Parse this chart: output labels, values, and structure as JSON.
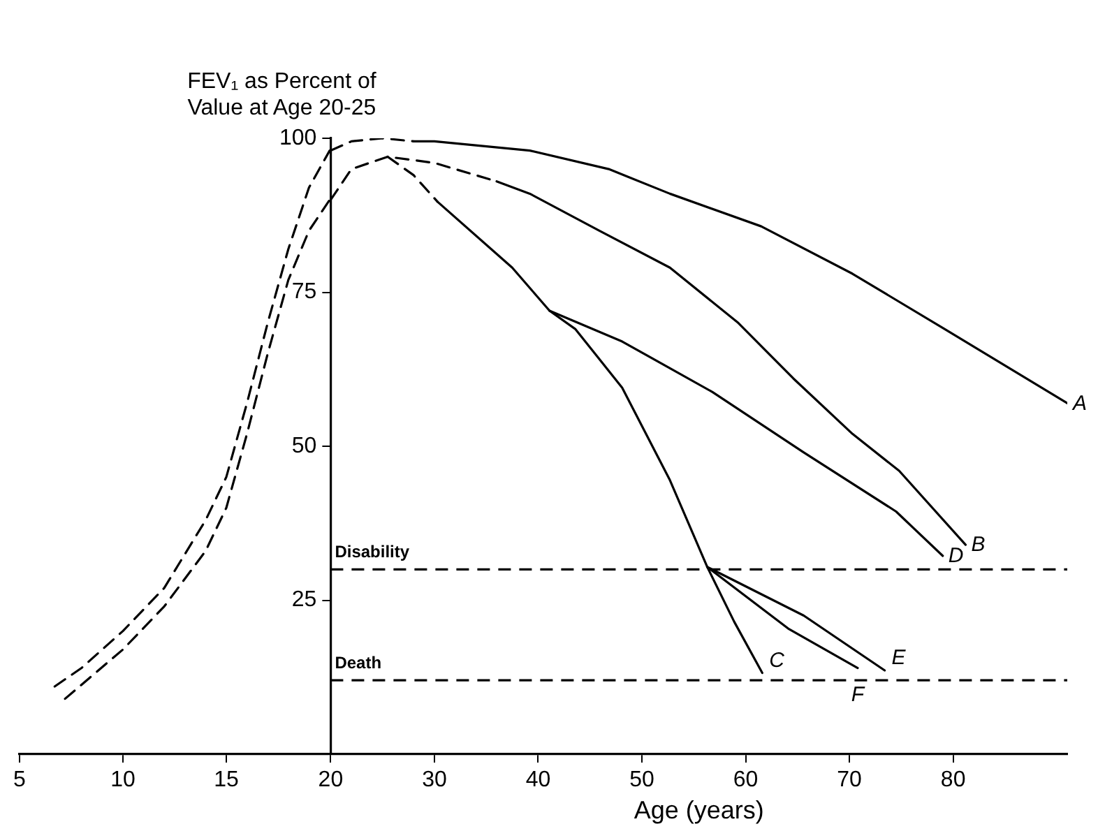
{
  "chart_data": [
    {
      "type": "line",
      "xlim": [
        5,
        20
      ],
      "xticks": [
        5,
        10,
        15
      ],
      "ylim": [
        0,
        100
      ],
      "tick_labels": "x",
      "grid": false,
      "legend": false,
      "marker": "none",
      "series": [
        {
          "color": "#000000",
          "line_style": "dashed",
          "x": [
            6.7,
            8,
            10,
            12,
            14,
            15,
            16,
            17,
            18,
            19,
            20
          ],
          "values": [
            11,
            14,
            20,
            27,
            38,
            45,
            57,
            70,
            82,
            92,
            98
          ]
        },
        {
          "color": "#000000",
          "line_style": "dashed",
          "x": [
            7.2,
            10,
            12,
            14,
            15,
            16,
            17,
            18,
            19,
            20
          ],
          "values": [
            9,
            17,
            24,
            33,
            40,
            52,
            65,
            77,
            85,
            90
          ]
        }
      ]
    },
    {
      "type": "line",
      "ylabel": "FEV₁ as Percent of Value at Age 20-25",
      "xlabel": "Age (years)",
      "xlim": [
        20,
        91
      ],
      "xticks": [
        20,
        30,
        40,
        50,
        60,
        70,
        80
      ],
      "ylim": [
        0,
        100
      ],
      "yticks": [
        25,
        50,
        75,
        100
      ],
      "grid": false,
      "legend": false,
      "marker": "none",
      "ref_lines": [
        {
          "axis": "y",
          "value": 30,
          "label": "Disability",
          "color": "#000000",
          "line_style": "dashed"
        },
        {
          "axis": "y",
          "value": 12,
          "label": "Death",
          "color": "#000000",
          "line_style": "dashed"
        }
      ],
      "series": [
        {
          "color": "#000000",
          "line_style": "dashed",
          "x": [
            20,
            22,
            25,
            28
          ],
          "values": [
            98,
            99.5,
            100,
            99.5
          ]
        },
        {
          "color": "#000000",
          "line_style": "dashed",
          "x": [
            20,
            22,
            25.5,
            30,
            36
          ],
          "values": [
            90,
            95,
            97,
            96,
            93
          ]
        },
        {
          "color": "#000000",
          "line_style": "dashed",
          "x": [
            25.5,
            28,
            30.3
          ],
          "values": [
            97,
            94,
            89.7
          ]
        },
        {
          "name": "A",
          "color": "#000000",
          "line_style": "solid",
          "x": [
            28,
            30,
            39.2,
            46.8,
            52.7,
            61.5,
            70.3,
            79.2,
            91
          ],
          "values": [
            99.5,
            99.5,
            98,
            95,
            91,
            85.7,
            78,
            69,
            57
          ]
        },
        {
          "name": "B",
          "color": "#000000",
          "line_style": "solid",
          "x": [
            36,
            39.2,
            45.9,
            52.7,
            59.3,
            64.6,
            70.3,
            74.8,
            81.2
          ],
          "values": [
            93,
            91,
            85,
            79,
            70,
            61,
            52,
            46,
            34
          ]
        },
        {
          "name": "C",
          "color": "#000000",
          "line_style": "solid",
          "x": [
            30.3,
            37.5,
            41.1,
            43.6,
            48.1,
            52.7,
            56.3,
            58.9,
            61.6
          ],
          "values": [
            89.7,
            79,
            72,
            69,
            59.5,
            44.5,
            30.4,
            21.5,
            13.2
          ]
        },
        {
          "name": "D",
          "color": "#000000",
          "line_style": "solid",
          "x": [
            41.1,
            48.1,
            56.8,
            65.6,
            74.5,
            79
          ],
          "values": [
            72,
            67,
            58.8,
            49,
            39.4,
            32.2
          ]
        },
        {
          "name": "E",
          "color": "#000000",
          "line_style": "solid",
          "x": [
            56.3,
            65.6,
            73.4
          ],
          "values": [
            30.4,
            22.5,
            13.6
          ]
        },
        {
          "name": "F",
          "color": "#000000",
          "line_style": "solid",
          "x": [
            56.3,
            64.1,
            70.8
          ],
          "values": [
            30.4,
            20.4,
            14
          ]
        }
      ]
    }
  ]
}
